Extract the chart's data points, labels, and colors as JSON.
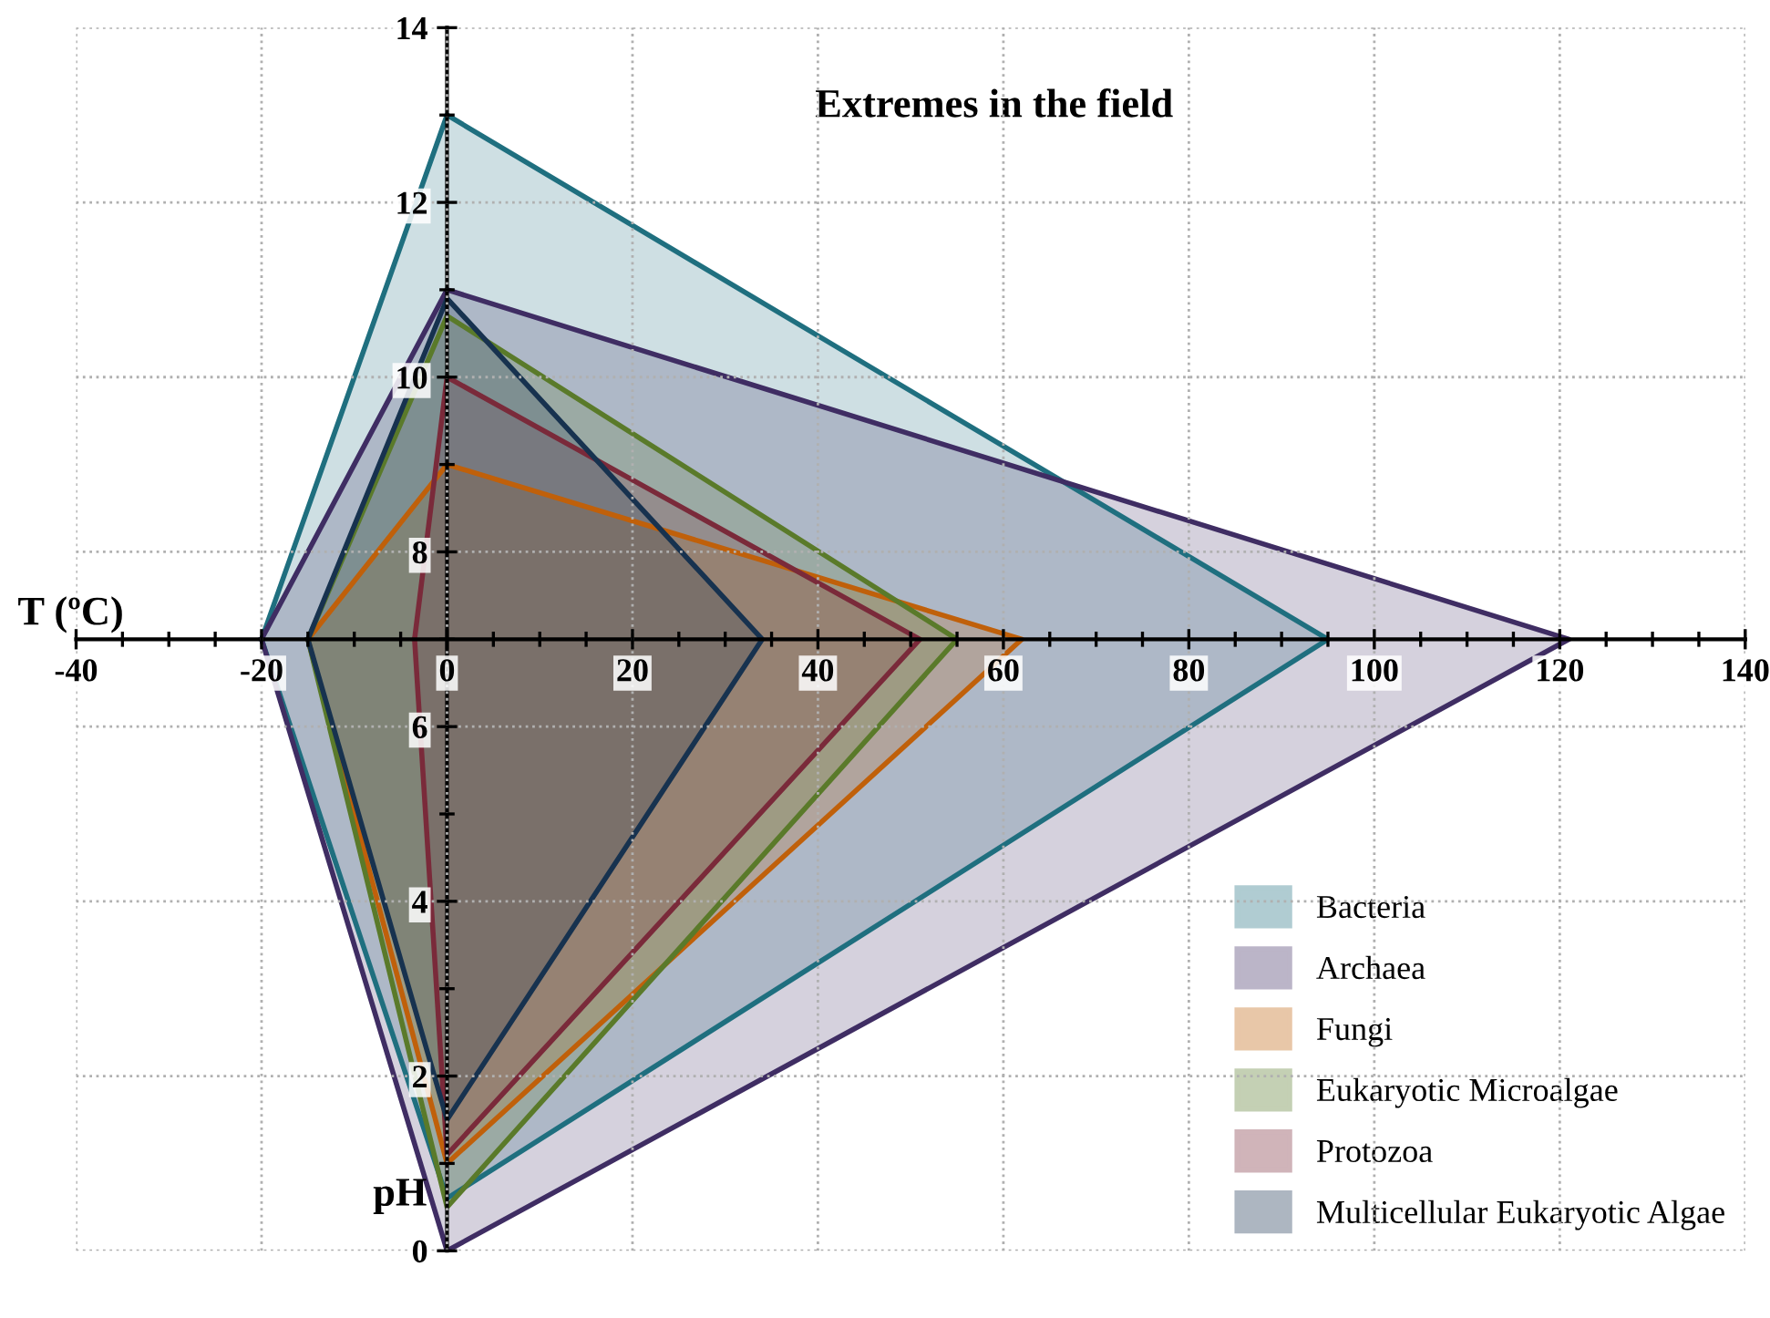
{
  "chart_data": {
    "type": "area",
    "title": "Extremes in the field",
    "xlabel": "T (ºC)",
    "ylabel": "pH",
    "xlim": [
      -40,
      140
    ],
    "ylim": [
      0,
      14
    ],
    "xticks": [
      -40,
      -20,
      0,
      20,
      40,
      60,
      80,
      100,
      120,
      140
    ],
    "yticks": [
      0,
      2,
      4,
      6,
      8,
      10,
      12,
      14
    ],
    "grid": true,
    "legend": "bottom right",
    "series": [
      {
        "name": "Bacteria",
        "color": "#1f6f7f",
        "x": [
          -20,
          0,
          95,
          0
        ],
        "values": [
          7,
          13,
          7,
          0.6
        ]
      },
      {
        "name": "Archaea",
        "color": "#3f2d63",
        "x": [
          -20,
          0,
          121,
          0
        ],
        "values": [
          7,
          11,
          7,
          0
        ]
      },
      {
        "name": "Fungi",
        "color": "#c0600a",
        "x": [
          -15,
          0,
          62,
          0
        ],
        "values": [
          7,
          9,
          7,
          1
        ]
      },
      {
        "name": "Eukaryotic Microalgae",
        "color": "#5a7a2a",
        "x": [
          -15,
          0,
          55,
          0
        ],
        "values": [
          7,
          10.7,
          7,
          0.5
        ]
      },
      {
        "name": "Protozoa",
        "color": "#7a2a3a",
        "x": [
          -3.5,
          0,
          51,
          0
        ],
        "values": [
          7,
          10,
          7,
          1.1
        ]
      },
      {
        "name": "Multicellular Eukaryotic Algae",
        "color": "#17324f",
        "x": [
          -15,
          0,
          34,
          0
        ],
        "values": [
          7,
          10.9,
          7,
          1.5
        ]
      }
    ]
  }
}
